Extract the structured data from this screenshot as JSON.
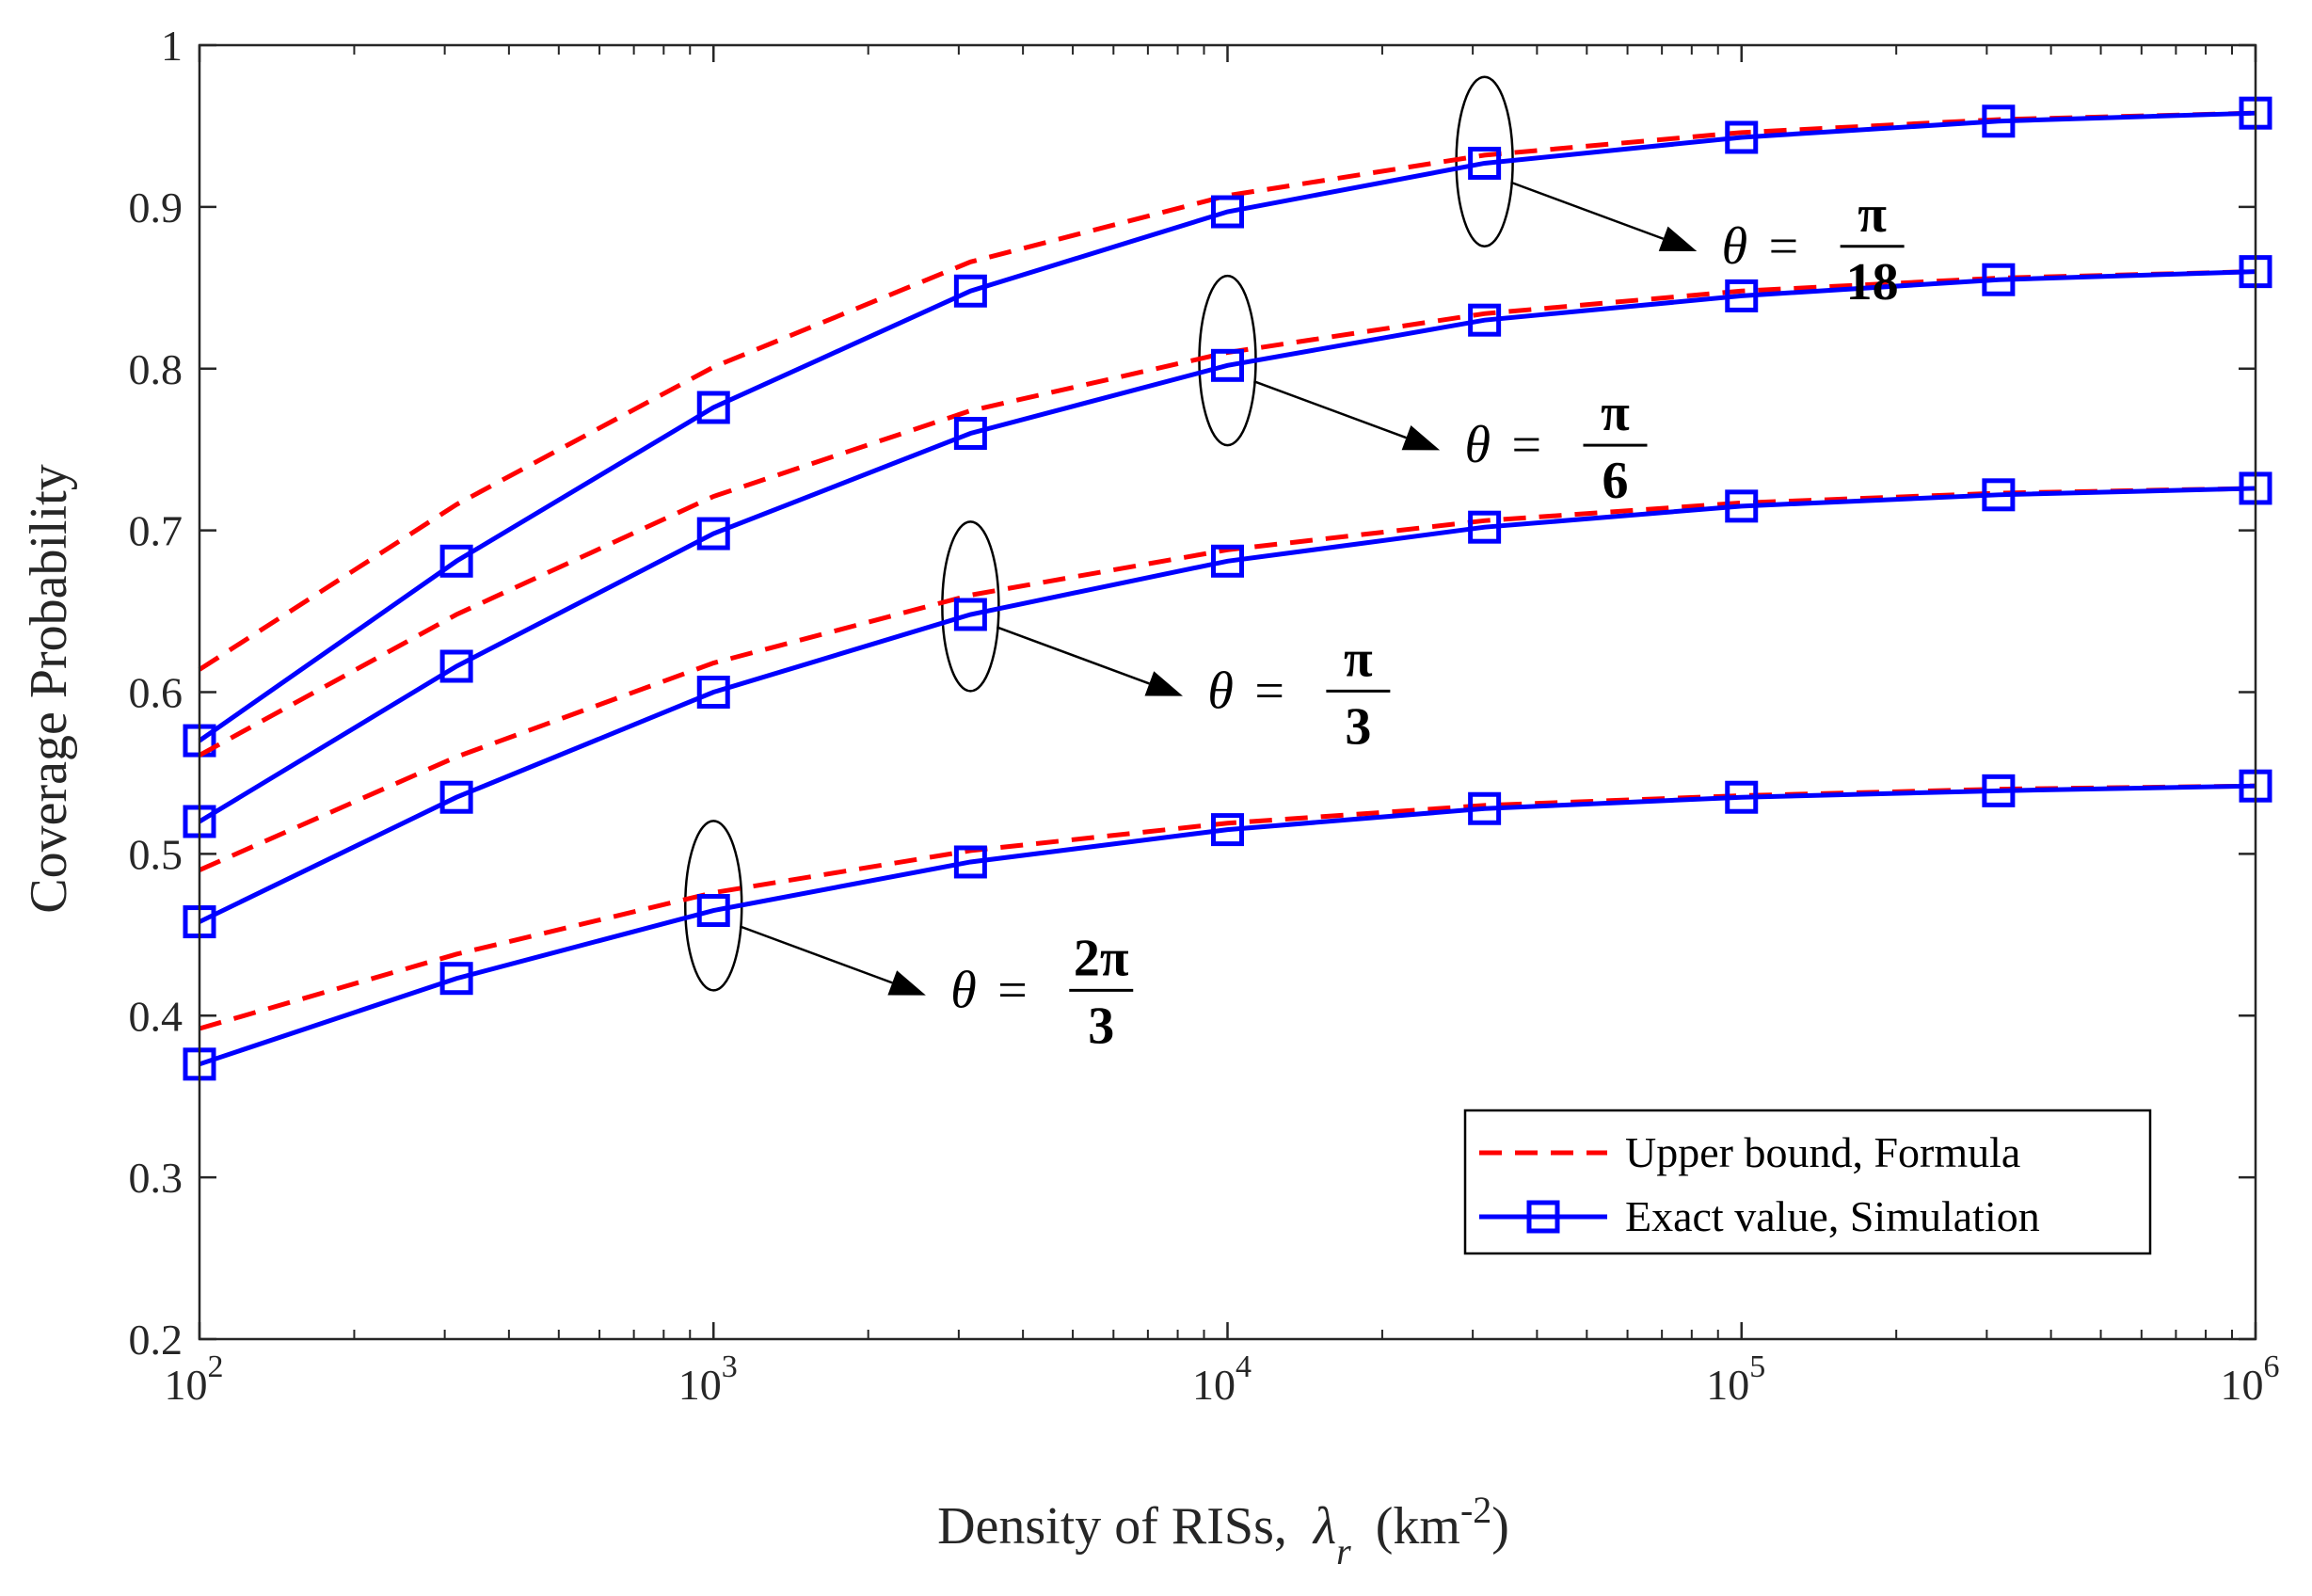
{
  "chart_data": {
    "type": "line",
    "title": "",
    "xlabel": "Density of RISs,",
    "xlabel_symbol": "λ",
    "xlabel_subscript": "r",
    "xlabel_unit_prefix": "(km",
    "xlabel_unit_exponent": "-2",
    "xlabel_unit_suffix": ")",
    "ylabel": "Coverage Probability",
    "xscale": "log",
    "xlim": [
      100,
      1000000
    ],
    "ylim": [
      0.2,
      1.0
    ],
    "x_ticks": [
      {
        "value": 100,
        "base": "10",
        "exp": "2"
      },
      {
        "value": 1000,
        "base": "10",
        "exp": "3"
      },
      {
        "value": 10000,
        "base": "10",
        "exp": "4"
      },
      {
        "value": 100000,
        "base": "10",
        "exp": "5"
      },
      {
        "value": 1000000,
        "base": "10",
        "exp": "6"
      }
    ],
    "y_ticks": [
      {
        "value": 0.2,
        "label": "0.2"
      },
      {
        "value": 0.3,
        "label": "0.3"
      },
      {
        "value": 0.4,
        "label": "0.4"
      },
      {
        "value": 0.5,
        "label": "0.5"
      },
      {
        "value": 0.6,
        "label": "0.6"
      },
      {
        "value": 0.7,
        "label": "0.7"
      },
      {
        "value": 0.8,
        "label": "0.8"
      },
      {
        "value": 0.9,
        "label": "0.9"
      },
      {
        "value": 1.0,
        "label": "1"
      }
    ],
    "x": [
      100,
      316.23,
      1000,
      3162.3,
      10000,
      31623,
      100000,
      316230,
      1000000
    ],
    "groups": [
      {
        "theta_num": "π",
        "theta_den": "18",
        "upper_bound": [
          0.614,
          0.716,
          0.801,
          0.866,
          0.907,
          0.932,
          0.946,
          0.954,
          0.958
        ],
        "simulation": [
          0.57,
          0.681,
          0.776,
          0.848,
          0.897,
          0.927,
          0.943,
          0.953,
          0.958
        ],
        "ellipse_x_index": 5,
        "ellipse_y": 0.928
      },
      {
        "theta_num": "π",
        "theta_den": "6",
        "upper_bound": [
          0.561,
          0.648,
          0.721,
          0.774,
          0.81,
          0.834,
          0.848,
          0.856,
          0.86
        ],
        "simulation": [
          0.52,
          0.616,
          0.698,
          0.76,
          0.802,
          0.83,
          0.845,
          0.855,
          0.86
        ],
        "ellipse_x_index": 4,
        "ellipse_y": 0.805
      },
      {
        "theta_num": "π",
        "theta_den": "3",
        "upper_bound": [
          0.49,
          0.56,
          0.618,
          0.66,
          0.688,
          0.706,
          0.717,
          0.723,
          0.726
        ],
        "simulation": [
          0.458,
          0.535,
          0.6,
          0.648,
          0.681,
          0.702,
          0.715,
          0.722,
          0.726
        ],
        "ellipse_x_index": 3,
        "ellipse_y": 0.653
      },
      {
        "theta_num": "2π",
        "theta_den": "3",
        "upper_bound": [
          0.392,
          0.438,
          0.476,
          0.502,
          0.519,
          0.53,
          0.536,
          0.54,
          0.542
        ],
        "simulation": [
          0.37,
          0.423,
          0.465,
          0.495,
          0.515,
          0.528,
          0.535,
          0.539,
          0.542
        ],
        "ellipse_x_index": 2,
        "ellipse_y": 0.468
      }
    ],
    "legend": {
      "placement": "bottom-right",
      "entries": [
        {
          "label": "Upper bound, Formula",
          "style": "dashed",
          "color": "#ff0000"
        },
        {
          "label": "Exact value, Simulation",
          "style": "solid-square",
          "color": "#0000ff"
        }
      ]
    },
    "annotation_symbol": "θ",
    "annotation_equals": "=",
    "colors": {
      "upper_bound": "#ff0000",
      "simulation": "#0000ff",
      "axis": "#262626"
    }
  }
}
